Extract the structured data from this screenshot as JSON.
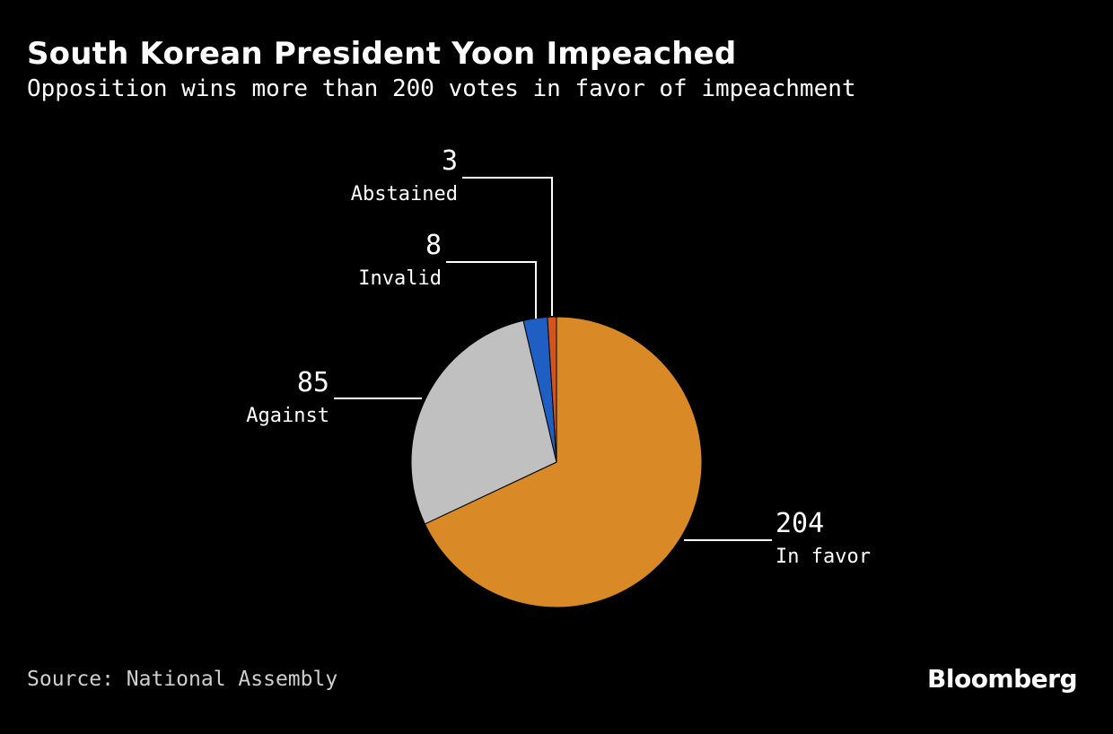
{
  "header": {
    "title": "South Korean President Yoon Impeached",
    "subtitle": "Opposition wins more than 200 votes in favor of impeachment"
  },
  "footer": {
    "source": "Source: National Assembly",
    "brand": "Bloomberg"
  },
  "chart_data": {
    "type": "pie",
    "title": "South Korean President Yoon Impeached",
    "subtitle": "Opposition wins more than 200 votes in favor of impeachment",
    "slices": [
      {
        "label": "In favor",
        "value": 204,
        "color": "#d98a26"
      },
      {
        "label": "Against",
        "value": 85,
        "color": "#c0c0c0"
      },
      {
        "label": "Invalid",
        "value": 8,
        "color": "#1f5fc4"
      },
      {
        "label": "Abstained",
        "value": 3,
        "color": "#d0561e"
      }
    ],
    "start": "12 o'clock",
    "direction": "clockwise"
  }
}
